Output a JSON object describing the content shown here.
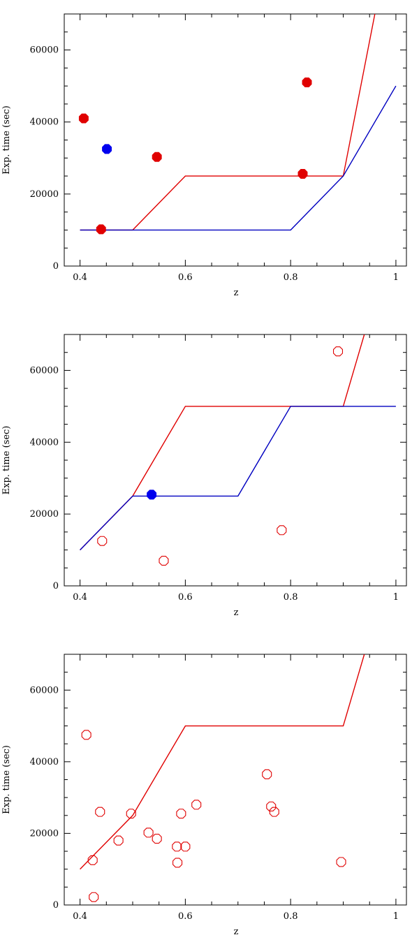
{
  "chart_data": [
    {
      "type": "scatter",
      "xlabel": "z",
      "ylabel": "Exp. time (sec)",
      "xlim": [
        0.37,
        1.02
      ],
      "ylim": [
        0,
        70000
      ],
      "xticks": [
        "0.4",
        "0.6",
        "0.8",
        "1"
      ],
      "yticks": [
        "0",
        "20000",
        "40000",
        "60000"
      ],
      "grid": false,
      "lines": [
        {
          "color": "#e00000",
          "points": [
            [
              0.4,
              10000
            ],
            [
              0.5,
              10000
            ],
            [
              0.6,
              25000
            ],
            [
              0.9,
              25000
            ],
            [
              0.96,
              70000
            ]
          ]
        },
        {
          "color": "#0000c0",
          "points": [
            [
              0.4,
              10000
            ],
            [
              0.8,
              10000
            ],
            [
              0.9,
              25000
            ],
            [
              1.0,
              50000
            ]
          ]
        }
      ],
      "points": [
        {
          "x": 0.407,
          "y": 41000,
          "color": "#e00000",
          "filled": true
        },
        {
          "x": 0.44,
          "y": 10200,
          "color": "#e00000",
          "filled": true
        },
        {
          "x": 0.451,
          "y": 32500,
          "color": "#0000ee",
          "filled": true
        },
        {
          "x": 0.546,
          "y": 30300,
          "color": "#e00000",
          "filled": true
        },
        {
          "x": 0.823,
          "y": 25600,
          "color": "#e00000",
          "filled": true
        },
        {
          "x": 0.831,
          "y": 51000,
          "color": "#e00000",
          "filled": true
        }
      ]
    },
    {
      "type": "scatter",
      "xlabel": "z",
      "ylabel": "Exp. time (sec)",
      "xlim": [
        0.37,
        1.02
      ],
      "ylim": [
        0,
        70000
      ],
      "xticks": [
        "0.4",
        "0.6",
        "0.8",
        "1"
      ],
      "yticks": [
        "0",
        "20000",
        "40000",
        "60000"
      ],
      "grid": false,
      "lines": [
        {
          "color": "#e00000",
          "points": [
            [
              0.4,
              10000
            ],
            [
              0.5,
              25000
            ],
            [
              0.6,
              50000
            ],
            [
              0.9,
              50000
            ],
            [
              0.94,
              70000
            ]
          ]
        },
        {
          "color": "#0000c0",
          "points": [
            [
              0.4,
              10000
            ],
            [
              0.5,
              25000
            ],
            [
              0.7,
              25000
            ],
            [
              0.8,
              50000
            ],
            [
              1.0,
              50000
            ]
          ]
        }
      ],
      "points": [
        {
          "x": 0.536,
          "y": 25400,
          "color": "#0000ee",
          "filled": true
        },
        {
          "x": 0.442,
          "y": 12500,
          "color": "#e00000",
          "filled": false
        },
        {
          "x": 0.559,
          "y": 7000,
          "color": "#e00000",
          "filled": false
        },
        {
          "x": 0.783,
          "y": 15500,
          "color": "#e00000",
          "filled": false
        },
        {
          "x": 0.89,
          "y": 65300,
          "color": "#e00000",
          "filled": false
        }
      ]
    },
    {
      "type": "scatter",
      "xlabel": "z",
      "ylabel": "Exp. time (sec)",
      "xlim": [
        0.37,
        1.02
      ],
      "ylim": [
        0,
        70000
      ],
      "xticks": [
        "0.4",
        "0.6",
        "0.8",
        "1"
      ],
      "yticks": [
        "0",
        "20000",
        "40000",
        "60000"
      ],
      "grid": false,
      "lines": [
        {
          "color": "#e00000",
          "points": [
            [
              0.4,
              10000
            ],
            [
              0.5,
              25000
            ],
            [
              0.6,
              50000
            ],
            [
              0.9,
              50000
            ],
            [
              0.94,
              70000
            ]
          ]
        }
      ],
      "points": [
        {
          "x": 0.412,
          "y": 47500,
          "color": "#e00000",
          "filled": false
        },
        {
          "x": 0.424,
          "y": 12500,
          "color": "#e00000",
          "filled": false
        },
        {
          "x": 0.426,
          "y": 2200,
          "color": "#e00000",
          "filled": false
        },
        {
          "x": 0.438,
          "y": 26000,
          "color": "#e00000",
          "filled": false
        },
        {
          "x": 0.473,
          "y": 18000,
          "color": "#e00000",
          "filled": false
        },
        {
          "x": 0.497,
          "y": 25500,
          "color": "#e00000",
          "filled": false
        },
        {
          "x": 0.53,
          "y": 20200,
          "color": "#e00000",
          "filled": false
        },
        {
          "x": 0.546,
          "y": 18500,
          "color": "#e00000",
          "filled": false
        },
        {
          "x": 0.584,
          "y": 16300,
          "color": "#e00000",
          "filled": false
        },
        {
          "x": 0.585,
          "y": 11800,
          "color": "#e00000",
          "filled": false
        },
        {
          "x": 0.592,
          "y": 25500,
          "color": "#e00000",
          "filled": false
        },
        {
          "x": 0.6,
          "y": 16300,
          "color": "#e00000",
          "filled": false
        },
        {
          "x": 0.621,
          "y": 28000,
          "color": "#e00000",
          "filled": false
        },
        {
          "x": 0.755,
          "y": 36500,
          "color": "#e00000",
          "filled": false
        },
        {
          "x": 0.763,
          "y": 27500,
          "color": "#e00000",
          "filled": false
        },
        {
          "x": 0.769,
          "y": 26000,
          "color": "#e00000",
          "filled": false
        },
        {
          "x": 0.896,
          "y": 12000,
          "color": "#e00000",
          "filled": false
        }
      ]
    }
  ]
}
